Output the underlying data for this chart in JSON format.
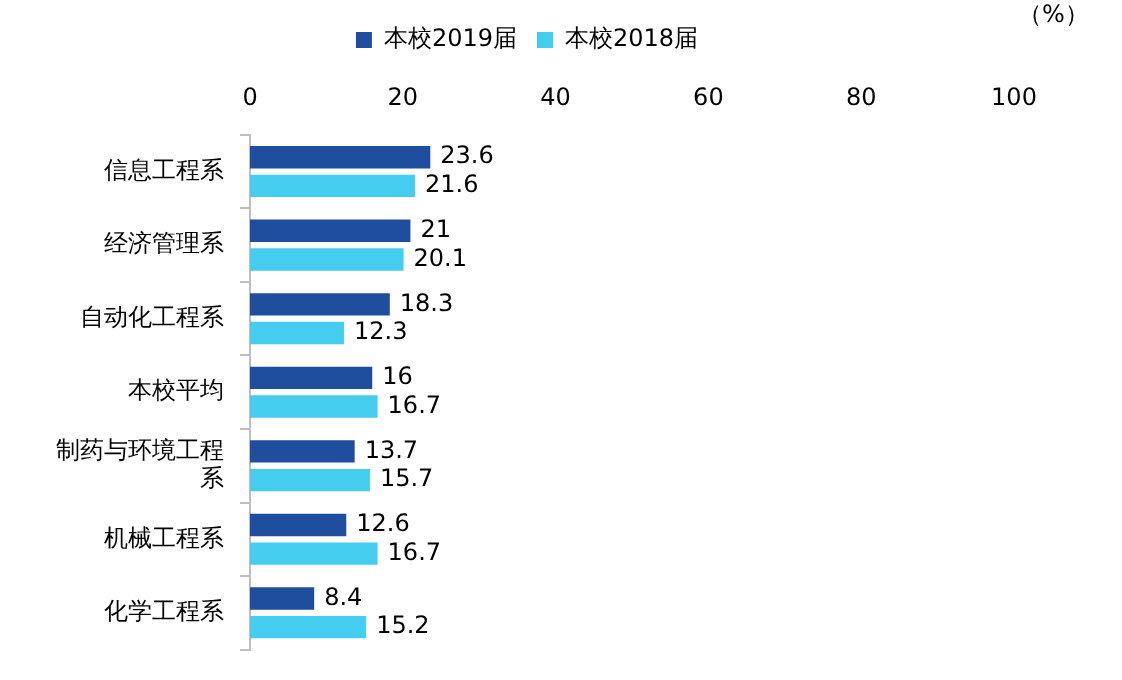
{
  "chart_data": {
    "type": "bar",
    "orientation": "horizontal",
    "xlabel": "（%）",
    "categories": [
      "信息工程系",
      "经济管理系",
      "自动化工程系",
      "本校平均",
      "制药与环境工程系",
      "机械工程系",
      "化学工程系"
    ],
    "series": [
      {
        "name": "本校2019届",
        "color": "#1f4e9e",
        "values": [
          23.6,
          21,
          18.3,
          16,
          13.7,
          12.6,
          8.4
        ]
      },
      {
        "name": "本校2018届",
        "color": "#45cdf0",
        "values": [
          21.6,
          20.1,
          12.3,
          16.7,
          15.7,
          16.7,
          15.2
        ]
      }
    ],
    "xlim": [
      0,
      100
    ],
    "xticks": [
      0,
      20,
      40,
      60,
      80,
      100
    ],
    "grid": false,
    "legend": "top",
    "data_labels": true
  }
}
